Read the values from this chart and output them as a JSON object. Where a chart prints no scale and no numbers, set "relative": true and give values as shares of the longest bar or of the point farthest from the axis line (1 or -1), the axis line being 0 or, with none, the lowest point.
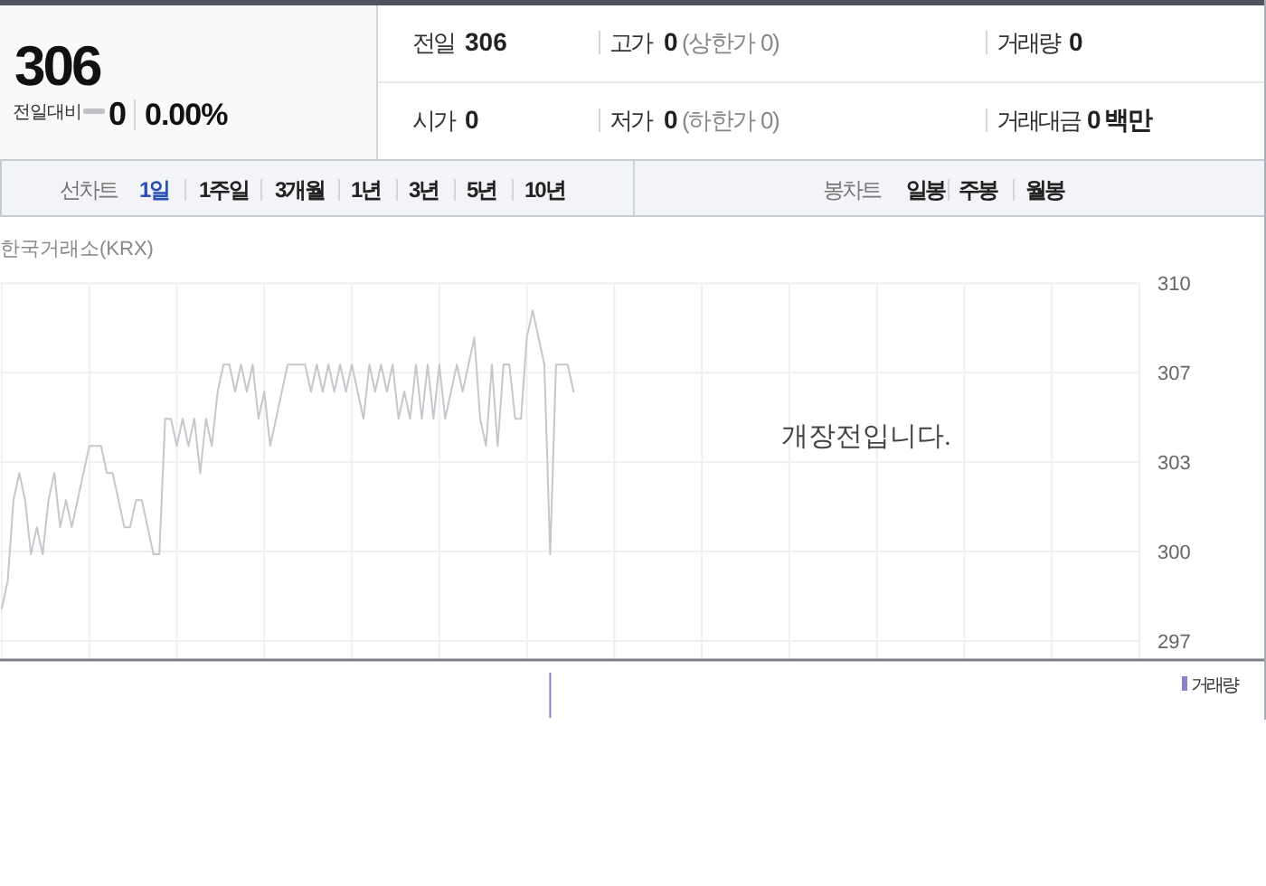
{
  "chart_data": [
    {
      "type": "other",
      "annotations": [
        "306",
        "전일대비",
        "0",
        "0.00%",
        "전일",
        "306",
        "고가",
        "0",
        "(상한가 0)",
        "거래량",
        "0",
        "시가",
        "0",
        "저가",
        "0",
        "(하한가 0)",
        "거래대금",
        "0 백만",
        "선차트",
        "1일",
        "1주일",
        "3개월",
        "1년",
        "3년",
        "5년",
        "10년",
        "봉차트",
        "일봉",
        "주봉",
        "월봉"
      ]
    },
    {
      "type": "line",
      "annotations": [
        "한국거래소(KRX)",
        "개장전입니다."
      ],
      "categories": [
        null,
        null,
        null,
        null,
        null,
        null,
        null,
        null,
        null,
        null,
        null,
        null,
        null,
        null,
        null,
        null,
        null,
        null,
        null,
        null,
        null,
        null,
        null,
        null,
        null,
        null,
        null,
        null,
        null,
        null,
        null,
        null,
        null,
        null,
        null,
        null,
        null,
        null,
        null,
        null,
        null,
        null,
        null,
        null,
        null,
        null,
        null,
        null,
        null,
        null,
        null,
        null,
        null,
        null,
        null,
        null,
        null,
        null,
        null,
        null,
        null,
        null,
        null,
        null,
        null,
        null,
        null,
        null,
        null,
        null,
        null,
        null,
        null,
        null,
        null,
        null,
        null,
        null,
        null,
        null,
        null,
        null,
        null,
        null,
        null,
        null,
        null,
        null,
        null,
        null,
        null,
        null,
        null,
        null,
        null,
        null,
        null,
        null,
        null,
        null,
        null,
        null,
        null,
        null,
        null,
        null,
        null,
        null,
        null,
        null,
        null,
        null,
        null,
        null,
        null,
        null,
        null,
        null,
        null,
        null,
        null,
        null,
        null,
        null,
        null,
        null,
        null,
        null,
        null,
        null,
        null,
        null,
        null,
        null,
        null,
        null,
        null,
        null,
        null,
        null,
        null,
        null,
        null,
        null,
        null,
        null,
        null,
        null,
        null,
        null,
        null,
        null,
        null,
        null,
        null,
        null,
        null,
        null,
        null,
        null,
        null,
        null,
        null,
        null,
        null,
        null,
        null,
        null,
        null,
        null,
        null,
        null,
        null,
        null,
        null,
        null,
        null,
        null,
        null,
        null,
        null,
        null,
        null,
        null,
        null,
        null,
        null,
        null,
        null,
        null,
        null,
        null,
        null,
        null,
        null,
        null
      ],
      "series": [
        {
          "color": "#c5c7cc",
          "values": [
            298,
            299,
            302,
            303,
            302,
            300,
            301,
            300,
            302,
            303,
            301,
            302,
            301,
            302,
            303,
            304,
            304,
            304,
            303,
            303,
            302,
            301,
            301,
            302,
            302,
            301,
            300,
            300,
            305,
            305,
            304,
            305,
            304,
            305,
            303,
            305,
            304,
            306,
            307,
            307,
            306,
            307,
            306,
            307,
            305,
            306,
            304,
            305,
            306,
            307,
            307,
            307,
            307,
            306,
            307,
            306,
            307,
            306,
            307,
            306,
            307,
            306,
            305,
            307,
            306,
            307,
            306,
            307,
            305,
            306,
            305,
            307,
            305,
            307,
            305,
            307,
            305,
            306,
            307,
            306,
            307,
            308,
            305,
            304,
            307,
            304,
            307,
            307,
            305,
            305,
            308,
            309,
            308,
            307,
            300,
            307,
            307,
            307,
            306,
            null,
            null,
            null,
            null,
            null,
            null,
            null,
            null,
            null,
            null,
            null,
            null,
            null,
            null,
            null,
            null,
            null,
            null,
            null,
            null,
            null,
            null,
            null,
            null,
            null,
            null,
            null,
            null,
            null,
            null,
            null,
            null,
            null,
            null,
            null,
            null,
            null,
            null,
            null,
            null,
            null,
            null,
            null,
            null,
            null,
            null,
            null,
            null,
            null,
            null,
            null,
            null,
            null,
            null,
            null,
            null,
            null,
            null,
            null,
            null,
            null,
            null,
            null,
            null,
            null,
            null,
            null,
            null,
            null,
            null,
            null,
            null,
            null,
            null,
            null,
            null,
            null,
            null,
            null,
            null,
            null,
            null,
            null,
            null,
            null,
            null,
            null,
            null,
            null,
            null,
            null,
            null,
            null,
            null,
            null,
            null,
            null
          ]
        }
      ],
      "ylim": [
        296.1,
        310
      ],
      "yticks": [
        310,
        {
          "value": 306.7,
          "label": "307"
        },
        {
          "value": 303.4,
          "label": "303"
        },
        {
          "value": 300.1,
          "label": "300"
        },
        {
          "value": 296.8,
          "label": "297"
        }
      ],
      "grid": true,
      "tick_labels": "y"
    },
    {
      "type": "bar",
      "relative": true,
      "legend": "top right",
      "categories": [
        null,
        null,
        null,
        null,
        null,
        null,
        null,
        null,
        null,
        null,
        null,
        null,
        null,
        null,
        null,
        null,
        null,
        null,
        null,
        null,
        null,
        null,
        null,
        null,
        null,
        null,
        null,
        null,
        null,
        null,
        null,
        null,
        null,
        null,
        null,
        null,
        null,
        null,
        null,
        null,
        null,
        null,
        null,
        null,
        null,
        null,
        null,
        null,
        null,
        null,
        null,
        null,
        null,
        null,
        null,
        null,
        null,
        null,
        null,
        null,
        null,
        null,
        null,
        null,
        null,
        null,
        null,
        null,
        null,
        null,
        null,
        null,
        null,
        null,
        null,
        null,
        null,
        null,
        null,
        null,
        null,
        null,
        null,
        null,
        null,
        null,
        null,
        null,
        null,
        null,
        null,
        null,
        null,
        null,
        null,
        null,
        null,
        null,
        null,
        null,
        null,
        null,
        null,
        null,
        null,
        null,
        null,
        null,
        null,
        null,
        null,
        null,
        null,
        null,
        null,
        null,
        null,
        null,
        null,
        null,
        null,
        null,
        null,
        null,
        null,
        null,
        null,
        null,
        null,
        null,
        null,
        null,
        null,
        null,
        null,
        null,
        null,
        null,
        null,
        null,
        null,
        null,
        null,
        null,
        null,
        null,
        null,
        null,
        null,
        null,
        null,
        null,
        null,
        null,
        null,
        null,
        null,
        null,
        null,
        null,
        null,
        null,
        null,
        null,
        null,
        null,
        null,
        null,
        null,
        null,
        null,
        null,
        null,
        null,
        null,
        null,
        null,
        null,
        null,
        null,
        null,
        null,
        null,
        null,
        null,
        null,
        null,
        null,
        null,
        null,
        null,
        null,
        null,
        null,
        null,
        null
      ],
      "series": [
        {
          "name": "거래량",
          "color": "#8e7fcf",
          "values": [
            null,
            null,
            null,
            null,
            null,
            null,
            null,
            null,
            null,
            null,
            null,
            null,
            null,
            null,
            null,
            null,
            null,
            null,
            null,
            null,
            null,
            null,
            null,
            null,
            null,
            null,
            null,
            null,
            null,
            null,
            null,
            null,
            null,
            null,
            null,
            null,
            null,
            null,
            null,
            null,
            null,
            null,
            null,
            null,
            null,
            null,
            null,
            null,
            null,
            null,
            null,
            null,
            null,
            null,
            null,
            null,
            null,
            null,
            null,
            null,
            null,
            null,
            null,
            null,
            null,
            null,
            null,
            null,
            null,
            null,
            null,
            null,
            null,
            null,
            null,
            null,
            null,
            null,
            null,
            null,
            null,
            null,
            null,
            null,
            null,
            null,
            null,
            null,
            null,
            null,
            null,
            null,
            null,
            null,
            1,
            null,
            null,
            null,
            null,
            null,
            null,
            null,
            null,
            null,
            null,
            null,
            null,
            null,
            null,
            null,
            null,
            null,
            null,
            null,
            null,
            null,
            null,
            null,
            null,
            null,
            null,
            null,
            null,
            null,
            null,
            null,
            null,
            null,
            null,
            null,
            null,
            null,
            null,
            null,
            null,
            null,
            null,
            null,
            null,
            null,
            null,
            null,
            null,
            null,
            null,
            null,
            null,
            null,
            null,
            null,
            null,
            null,
            null,
            null,
            null,
            null,
            null,
            null,
            null,
            null,
            null,
            null,
            null,
            null,
            null,
            null,
            null,
            null,
            null,
            null,
            null,
            null,
            null,
            null,
            null,
            null,
            null,
            null,
            null,
            null,
            null,
            null,
            null,
            null,
            null,
            null,
            null,
            null,
            null,
            null,
            null,
            null,
            null,
            null,
            null,
            null
          ]
        }
      ]
    }
  ]
}
